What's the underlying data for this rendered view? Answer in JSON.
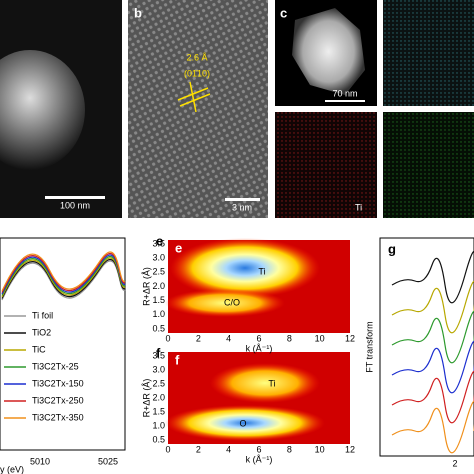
{
  "panels": {
    "a": {
      "scale_bar": "100 nm"
    },
    "b": {
      "label": "b",
      "spacing": "2.6 Å",
      "plane": "(01̄10)",
      "scale_bar": "3 nm"
    },
    "c": {
      "label": "c",
      "scale_bar": "70 nm",
      "element": "Ti"
    },
    "d": {
      "legend": [
        {
          "name": "Ti foil",
          "color": "#999999"
        },
        {
          "name": "TiO2",
          "color": "#111111"
        },
        {
          "name": "TiC",
          "color": "#b8a800"
        },
        {
          "name": "Ti3C2Tx-25",
          "color": "#2e9a2e"
        },
        {
          "name": "Ti3C2Tx-150",
          "color": "#1c2fd0"
        },
        {
          "name": "Ti3C2Tx-250",
          "color": "#d02020"
        },
        {
          "name": "Ti3C2Tx-350",
          "color": "#f0901c"
        }
      ],
      "xticks": [
        "5010",
        "5025"
      ],
      "xlabel": "y (eV)"
    },
    "e": {
      "label": "e",
      "ylabel": "R+ΔR (Å)",
      "yticks": [
        "0.5",
        "1.0",
        "1.5",
        "2.0",
        "2.5",
        "3.0",
        "3.5"
      ],
      "xticks": [
        "0",
        "2",
        "4",
        "6",
        "8",
        "10",
        "12"
      ],
      "xlabel": "k (Å⁻¹)",
      "peak_upper": "Ti",
      "peak_lower": "C/O"
    },
    "f": {
      "label": "f",
      "ylabel": "R+ΔR (Å)",
      "yticks": [
        "0.5",
        "1.0",
        "1.5",
        "2.0",
        "2.5",
        "3.0",
        "3.5"
      ],
      "xticks": [
        "0",
        "2",
        "4",
        "6",
        "8",
        "10",
        "12"
      ],
      "xlabel": "k (Å⁻¹)",
      "peak_upper": "Ti",
      "peak_lower": "O"
    },
    "g": {
      "label": "g",
      "ylabel": "FT transform",
      "xticks": [
        "2"
      ]
    }
  }
}
